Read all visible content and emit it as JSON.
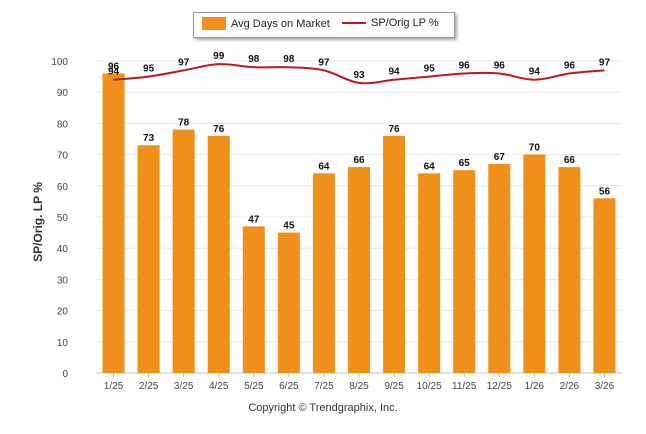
{
  "chart_data": {
    "type": "bar",
    "categories": [
      "1/25",
      "2/25",
      "3/25",
      "4/25",
      "5/25",
      "6/25",
      "7/25",
      "8/25",
      "9/25",
      "10/25",
      "11/25",
      "12/25",
      "1/26",
      "2/26",
      "3/26"
    ],
    "series": [
      {
        "name": "Avg Days on Market",
        "type": "bar",
        "color": "#f0901a",
        "values": [
          96,
          73,
          78,
          76,
          47,
          45,
          64,
          66,
          76,
          64,
          65,
          67,
          70,
          66,
          56
        ]
      },
      {
        "name": "SP/Orig LP %",
        "type": "line",
        "color": "#c01818",
        "values": [
          94,
          95,
          97,
          99,
          98,
          98,
          97,
          93,
          94,
          95,
          96,
          96,
          94,
          96,
          97
        ]
      }
    ],
    "ylabel": "SP/Orig. LP %",
    "ylim": [
      0,
      100
    ],
    "yticks": [
      0,
      10,
      20,
      30,
      40,
      50,
      60,
      70,
      80,
      90,
      100
    ],
    "grid": true,
    "legend": "top-center"
  },
  "legend": {
    "bar_label": "Avg Days on Market",
    "line_label": "SP/Orig LP %"
  },
  "footer": {
    "copyright": "Copyright © Trendgraphix, Inc."
  }
}
